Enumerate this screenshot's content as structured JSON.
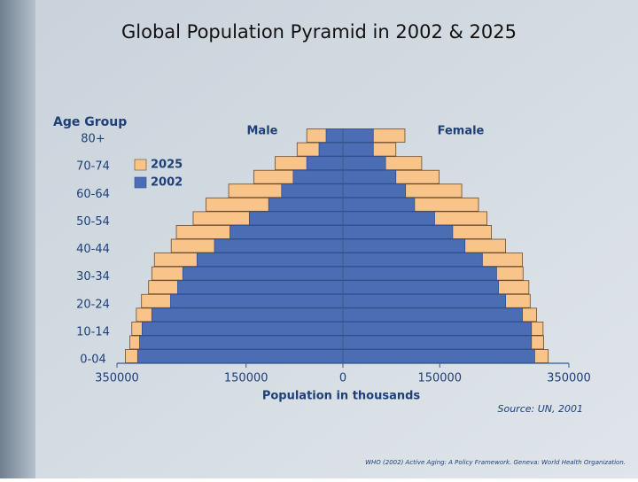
{
  "chart_data": {
    "type": "pyramid",
    "title": "Global Population Pyramid in 2002 & 2025",
    "y_label": "Age Group",
    "x_label": "Population in thousands",
    "left_label": "Male",
    "right_label": "Female",
    "source": "Source: UN, 2001",
    "categories": [
      "0-04",
      null,
      "10-14",
      null,
      "20-24",
      null,
      "30-34",
      null,
      "40-44",
      null,
      "50-54",
      null,
      "60-64",
      null,
      "70-74",
      null,
      "80+"
    ],
    "series": [
      {
        "name": "2025",
        "color": "#f9c48a",
        "male": [
          337000,
          330000,
          327000,
          320000,
          312000,
          301000,
          296000,
          292000,
          266000,
          258000,
          232000,
          212000,
          177000,
          138000,
          105000,
          71000,
          56000
        ],
        "female": [
          318000,
          311000,
          310000,
          300000,
          290000,
          288000,
          279000,
          278000,
          252000,
          230000,
          223000,
          210000,
          184000,
          149000,
          122000,
          82000,
          96000
        ]
      },
      {
        "name": "2002",
        "color": "#4a6db3",
        "male": [
          318000,
          315000,
          311000,
          296000,
          267000,
          256000,
          248000,
          226000,
          199000,
          175000,
          145000,
          115000,
          95000,
          77000,
          56000,
          37000,
          26000
        ],
        "female": [
          297000,
          292000,
          292000,
          278000,
          252000,
          241000,
          238000,
          216000,
          189000,
          170000,
          142000,
          111000,
          97000,
          82000,
          66000,
          47000,
          47000
        ]
      }
    ],
    "xlim": [
      -350000,
      350000
    ],
    "xticks": [
      {
        "value": -350000,
        "label": "350000"
      },
      {
        "value": -150000,
        "label": "150000"
      },
      0,
      150000,
      {
        "value": 350000,
        "label": "350000"
      }
    ]
  },
  "footer": "WHO (2002) Active Aging: A Policy Framework. Geneva: World Health Organization."
}
